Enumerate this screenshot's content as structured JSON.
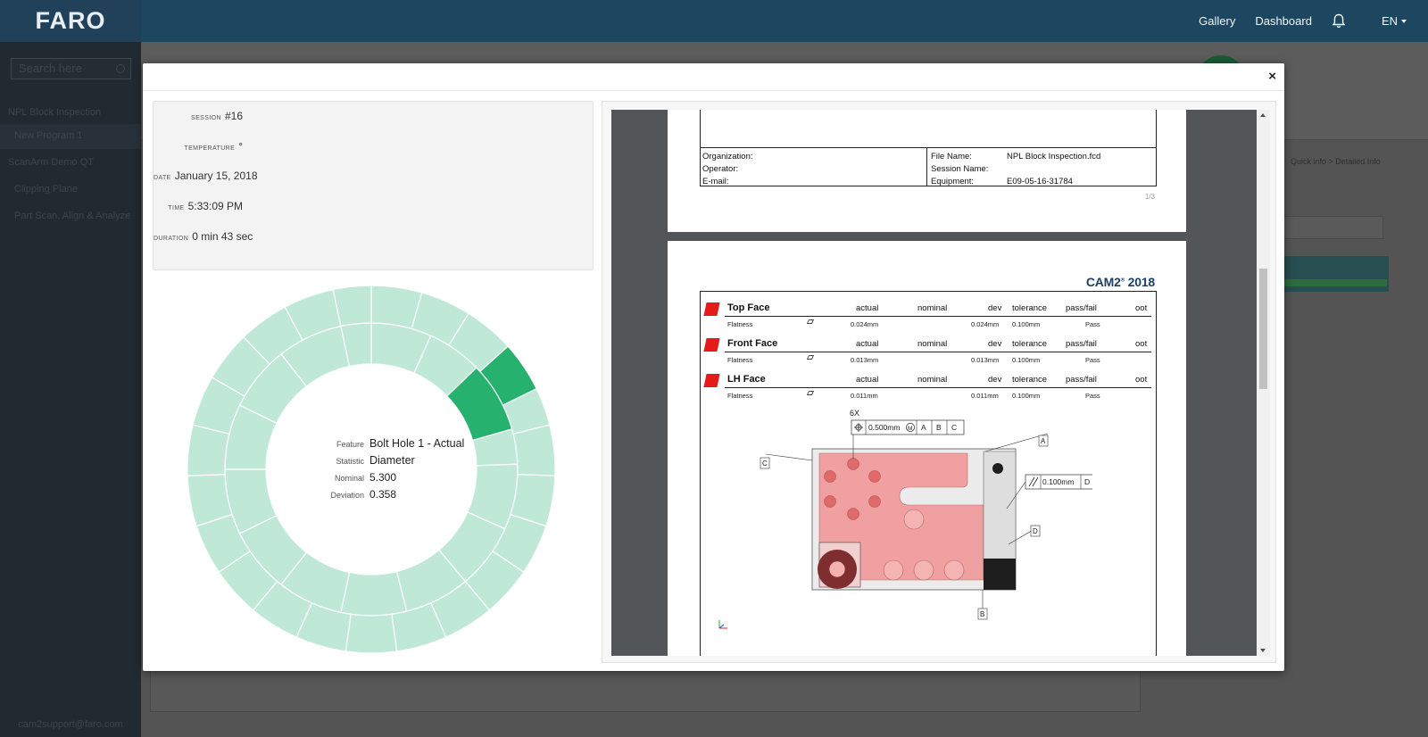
{
  "app": {
    "logo": "FARO",
    "nav": [
      "Gallery",
      "Dashboard"
    ],
    "language": "EN"
  },
  "sidebar": {
    "search_placeholder": "Search here",
    "items": [
      {
        "label": "NPL Block Inspection",
        "active": false,
        "sub": false
      },
      {
        "label": "New Program 1",
        "active": true,
        "sub": true
      },
      {
        "label": "ScanArm Demo QT",
        "active": false,
        "sub": false
      },
      {
        "label": "Clipping Plane",
        "active": false,
        "sub": true
      },
      {
        "label": "Part Scan, Align & Analyze",
        "active": false,
        "sub": true
      }
    ],
    "footer": "cam2support@faro.com"
  },
  "background": {
    "breadcrumbs": "Quick info  >  Detailed Info",
    "select_value": "al"
  },
  "modal": {
    "close": "×",
    "info": {
      "session_label": "SESSION",
      "session_value": "#16",
      "temperature_label": "TEMPERATURE",
      "temperature_value": "°",
      "date_label": "DATE",
      "date_value": "January 15, 2018",
      "time_label": "TIME",
      "time_value": "5:33:09 PM",
      "duration_label": "DURATION",
      "duration_value": "0 min 43 sec"
    },
    "sunburst_center": {
      "feature_label": "Feature",
      "feature_value": "Bolt Hole 1 - Actual",
      "statistic_label": "Statistic",
      "statistic_value": "Diameter",
      "nominal_label": "Nominal",
      "nominal_value": "5.300",
      "deviation_label": "Deviation",
      "deviation_value": "0.358"
    },
    "colors": {
      "ring_light": "#bfe9d6",
      "ring_highlight": "#26b26e",
      "flag": "#e31b1b",
      "brand_blue": "#1d3f63"
    }
  },
  "report": {
    "page1": {
      "organization_label": "Organization:",
      "operator_label": "Operator:",
      "email_label": "E-mail:",
      "file_name_label": "File Name:",
      "file_name_value": "NPL Block Inspection.fcd",
      "session_name_label": "Session Name:",
      "equipment_label": "Equipment:",
      "equipment_value": "E09-05-16-31784",
      "page_number": "1/3"
    },
    "page2": {
      "logo": "CAM2",
      "logo_reg": "®",
      "logo_year": "2018",
      "headers": [
        "actual",
        "nominal",
        "dev",
        "tolerance",
        "pass/fail",
        "oot"
      ],
      "features": [
        {
          "name": "Top Face",
          "sub": "Flatness",
          "actual": "0.024mm",
          "dev": "0.024mm",
          "tolerance": "0.100mm",
          "result": "Pass"
        },
        {
          "name": "Front Face",
          "sub": "Flatness",
          "actual": "0.013mm",
          "dev": "0.013mm",
          "tolerance": "0.100mm",
          "result": "Pass"
        },
        {
          "name": "LH Face",
          "sub": "Flatness",
          "actual": "0.011mm",
          "dev": "0.011mm",
          "tolerance": "0.100mm",
          "result": "Pass"
        }
      ],
      "drawing": {
        "count": "6X",
        "position_tol": "0.500mm",
        "modifier": "M",
        "datums": [
          "A",
          "B",
          "C"
        ],
        "parallel_tol": "0.100mm",
        "parallel_datum": "D",
        "labels": {
          "a": "A",
          "b": "B",
          "c": "C",
          "d": "D"
        }
      }
    }
  }
}
